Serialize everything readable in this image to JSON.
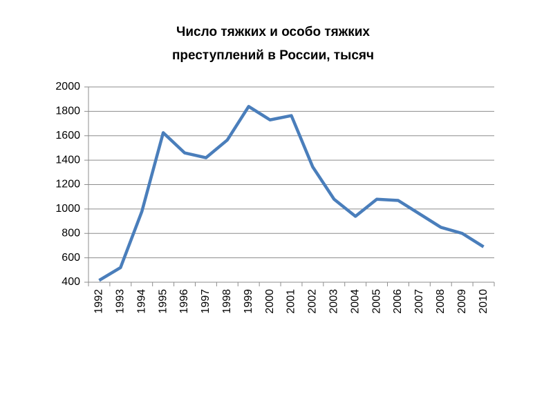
{
  "chart_data": {
    "type": "line",
    "title": "Число тяжких и особо тяжких преступлений в России, тысяч",
    "categories": [
      "1992",
      "1993",
      "1994",
      "1995",
      "1996",
      "1997",
      "1998",
      "1999",
      "2000",
      "2001",
      "2002",
      "2003",
      "2004",
      "2005",
      "2006",
      "2007",
      "2008",
      "2009",
      "2010"
    ],
    "series": [
      {
        "name": "Число тяжких и особо тяжких преступлений",
        "color": "#4a7ebb",
        "values": [
          415,
          520,
          980,
          1625,
          1460,
          1420,
          1565,
          1840,
          1730,
          1765,
          1345,
          1080,
          940,
          1080,
          1070,
          960,
          850,
          800,
          690
        ]
      }
    ],
    "ylim": [
      400,
      2000
    ],
    "yticks": [
      400,
      600,
      800,
      1000,
      1200,
      1400,
      1600,
      1800,
      2000
    ],
    "grid": true
  }
}
